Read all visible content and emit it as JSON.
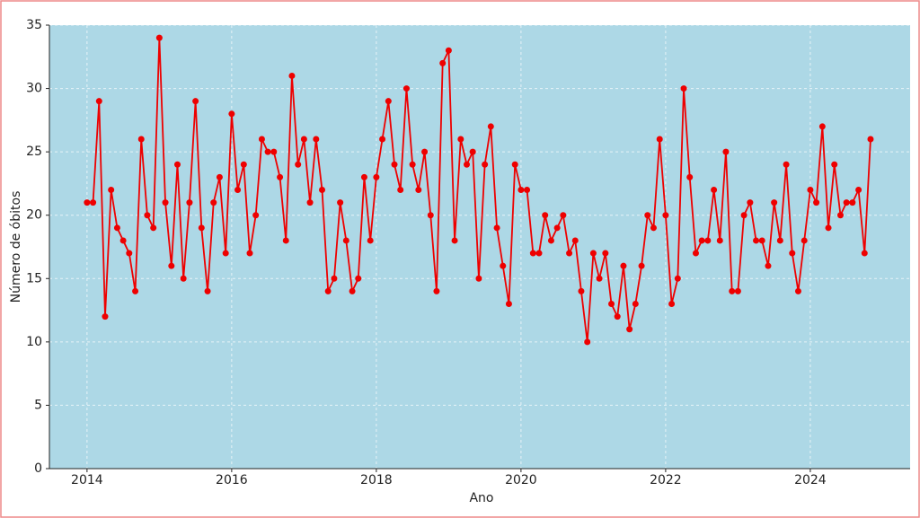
{
  "chart_data": {
    "type": "line",
    "x_label": "Ano",
    "y_label": "Número de óbitos",
    "x": [
      2014,
      2014.083,
      2014.167,
      2014.25,
      2014.333,
      2014.417,
      2014.5,
      2014.583,
      2014.667,
      2014.75,
      2014.833,
      2014.917,
      2015,
      2015.083,
      2015.167,
      2015.25,
      2015.333,
      2015.417,
      2015.5,
      2015.583,
      2015.667,
      2015.75,
      2015.833,
      2015.917,
      2016,
      2016.083,
      2016.167,
      2016.25,
      2016.333,
      2016.417,
      2016.5,
      2016.583,
      2016.667,
      2016.75,
      2016.833,
      2016.917,
      2017,
      2017.083,
      2017.167,
      2017.25,
      2017.333,
      2017.417,
      2017.5,
      2017.583,
      2017.667,
      2017.75,
      2017.833,
      2017.917,
      2018,
      2018.083,
      2018.167,
      2018.25,
      2018.333,
      2018.417,
      2018.5,
      2018.583,
      2018.667,
      2018.75,
      2018.833,
      2018.917,
      2019,
      2019.083,
      2019.167,
      2019.25,
      2019.333,
      2019.417,
      2019.5,
      2019.583,
      2019.667,
      2019.75,
      2019.833,
      2019.917,
      2020,
      2020.083,
      2020.167,
      2020.25,
      2020.333,
      2020.417,
      2020.5,
      2020.583,
      2020.667,
      2020.75,
      2020.833,
      2020.917,
      2021,
      2021.083,
      2021.167,
      2021.25,
      2021.333,
      2021.417,
      2021.5,
      2021.583,
      2021.667,
      2021.75,
      2021.833,
      2021.917,
      2022,
      2022.083,
      2022.167,
      2022.25,
      2022.333,
      2022.417,
      2022.5,
      2022.583,
      2022.667,
      2022.75,
      2022.833,
      2022.917,
      2023,
      2023.083,
      2023.167,
      2023.25,
      2023.333,
      2023.417,
      2023.5,
      2023.583,
      2023.667,
      2023.75,
      2023.833,
      2023.917,
      2024,
      2024.083,
      2024.167,
      2024.25,
      2024.333,
      2024.417,
      2024.5,
      2024.583,
      2024.667,
      2024.75,
      2024.833
    ],
    "series": [
      {
        "color": "#ee0000",
        "values": [
          21,
          21,
          29,
          12,
          22,
          19,
          18,
          17,
          14,
          26,
          20,
          19,
          34,
          21,
          16,
          24,
          15,
          21,
          29,
          19,
          14,
          21,
          23,
          17,
          28,
          22,
          24,
          17,
          20,
          26,
          25,
          25,
          23,
          18,
          31,
          24,
          26,
          21,
          26,
          22,
          14,
          15,
          21,
          18,
          14,
          15,
          23,
          18,
          23,
          26,
          29,
          24,
          22,
          30,
          24,
          22,
          25,
          20,
          14,
          32,
          33,
          18,
          26,
          24,
          25,
          15,
          24,
          27,
          19,
          16,
          13,
          24,
          22,
          22,
          17,
          17,
          20,
          18,
          19,
          20,
          17,
          18,
          14,
          10,
          17,
          15,
          17,
          13,
          12,
          16,
          11,
          13,
          16,
          20,
          19,
          26,
          20,
          13,
          15,
          30,
          23,
          17,
          18,
          18,
          22,
          18,
          25,
          14,
          14,
          20,
          21,
          18,
          18,
          16,
          21,
          18,
          24,
          17,
          14,
          18,
          22,
          21,
          27,
          19,
          24,
          20,
          21,
          21,
          22,
          17,
          26
        ]
      }
    ],
    "xlim": [
      2013.48,
      2025.38
    ],
    "xticks": [
      2014,
      2016,
      2018,
      2020,
      2022,
      2024
    ],
    "ylim": [
      0,
      35
    ],
    "yticks": [
      0,
      5,
      10,
      15,
      20,
      25,
      30,
      35
    ],
    "grid": true,
    "background": "#add8e6"
  }
}
